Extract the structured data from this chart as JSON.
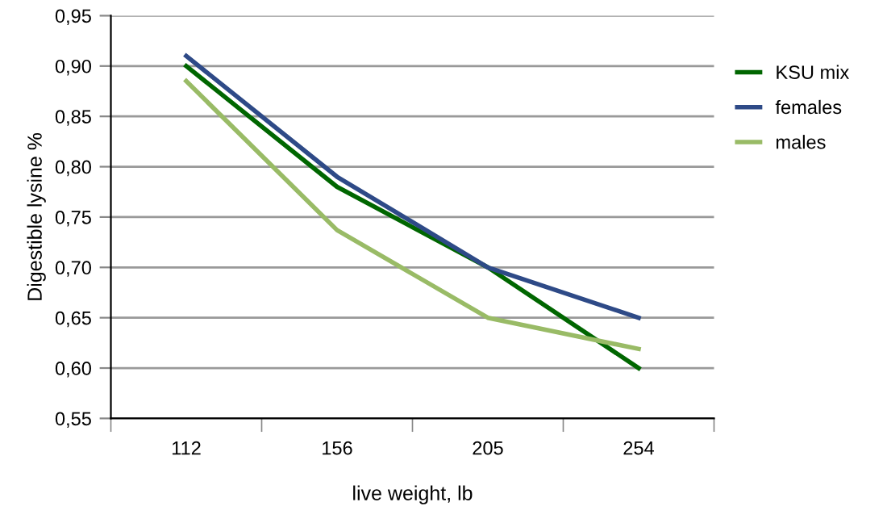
{
  "chart_data": {
    "type": "line",
    "xlabel": "live weight, lb",
    "ylabel": "Digestible lysine %",
    "categories": [
      "112",
      "156",
      "205",
      "254"
    ],
    "series": [
      {
        "name": "KSU mix",
        "color": "#006600",
        "values": [
          0.9,
          0.78,
          0.7,
          0.6
        ]
      },
      {
        "name": "females",
        "color": "#2e4a87",
        "values": [
          0.91,
          0.79,
          0.7,
          0.65
        ]
      },
      {
        "name": "males",
        "color": "#99bb66",
        "values": [
          0.885,
          0.737,
          0.65,
          0.619
        ]
      }
    ],
    "ylim": [
      0.55,
      0.95
    ],
    "yticks": [
      {
        "value": 0.55,
        "label": "0,55"
      },
      {
        "value": 0.6,
        "label": "0,60"
      },
      {
        "value": 0.65,
        "label": "0,65"
      },
      {
        "value": 0.7,
        "label": "0,70"
      },
      {
        "value": 0.75,
        "label": "0,75"
      },
      {
        "value": 0.8,
        "label": "0,80"
      },
      {
        "value": 0.85,
        "label": "0,85"
      },
      {
        "value": 0.9,
        "label": "0,90"
      },
      {
        "value": 0.95,
        "label": "0,95"
      }
    ],
    "grid": "y",
    "legend": "right",
    "marker": "none",
    "line_style": "solid"
  }
}
